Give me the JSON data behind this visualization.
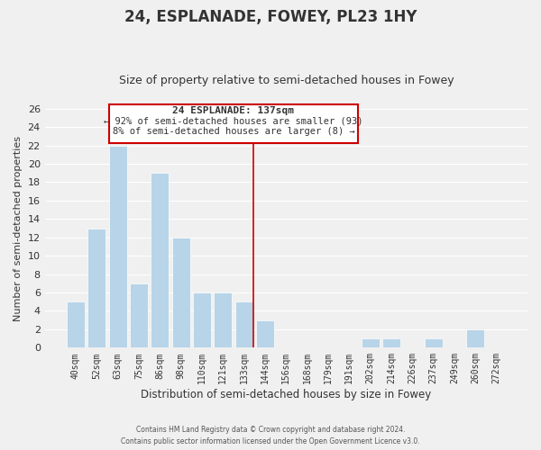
{
  "title": "24, ESPLANADE, FOWEY, PL23 1HY",
  "subtitle": "Size of property relative to semi-detached houses in Fowey",
  "xlabel": "Distribution of semi-detached houses by size in Fowey",
  "ylabel": "Number of semi-detached properties",
  "footer_line1": "Contains HM Land Registry data © Crown copyright and database right 2024.",
  "footer_line2": "Contains public sector information licensed under the Open Government Licence v3.0.",
  "bin_labels": [
    "40sqm",
    "52sqm",
    "63sqm",
    "75sqm",
    "86sqm",
    "98sqm",
    "110sqm",
    "121sqm",
    "133sqm",
    "144sqm",
    "156sqm",
    "168sqm",
    "179sqm",
    "191sqm",
    "202sqm",
    "214sqm",
    "226sqm",
    "237sqm",
    "249sqm",
    "260sqm",
    "272sqm"
  ],
  "bar_heights": [
    5,
    13,
    22,
    7,
    19,
    12,
    6,
    6,
    5,
    3,
    0,
    0,
    0,
    0,
    1,
    1,
    0,
    1,
    0,
    2,
    0
  ],
  "bar_color": "#b8d4e8",
  "bar_edge_color": "#ffffff",
  "marker_color": "#cc0000",
  "annotation_line1": "24 ESPLANADE: 137sqm",
  "annotation_line2": "← 92% of semi-detached houses are smaller (93)",
  "annotation_line3": "8% of semi-detached houses are larger (8) →",
  "annotation_box_color": "#ffffff",
  "annotation_box_edge": "#cc0000",
  "ylim": [
    0,
    26
  ],
  "yticks": [
    0,
    2,
    4,
    6,
    8,
    10,
    12,
    14,
    16,
    18,
    20,
    22,
    24,
    26
  ],
  "background_color": "#f0f0f0",
  "grid_color": "#ffffff",
  "title_fontsize": 12,
  "subtitle_fontsize": 9
}
